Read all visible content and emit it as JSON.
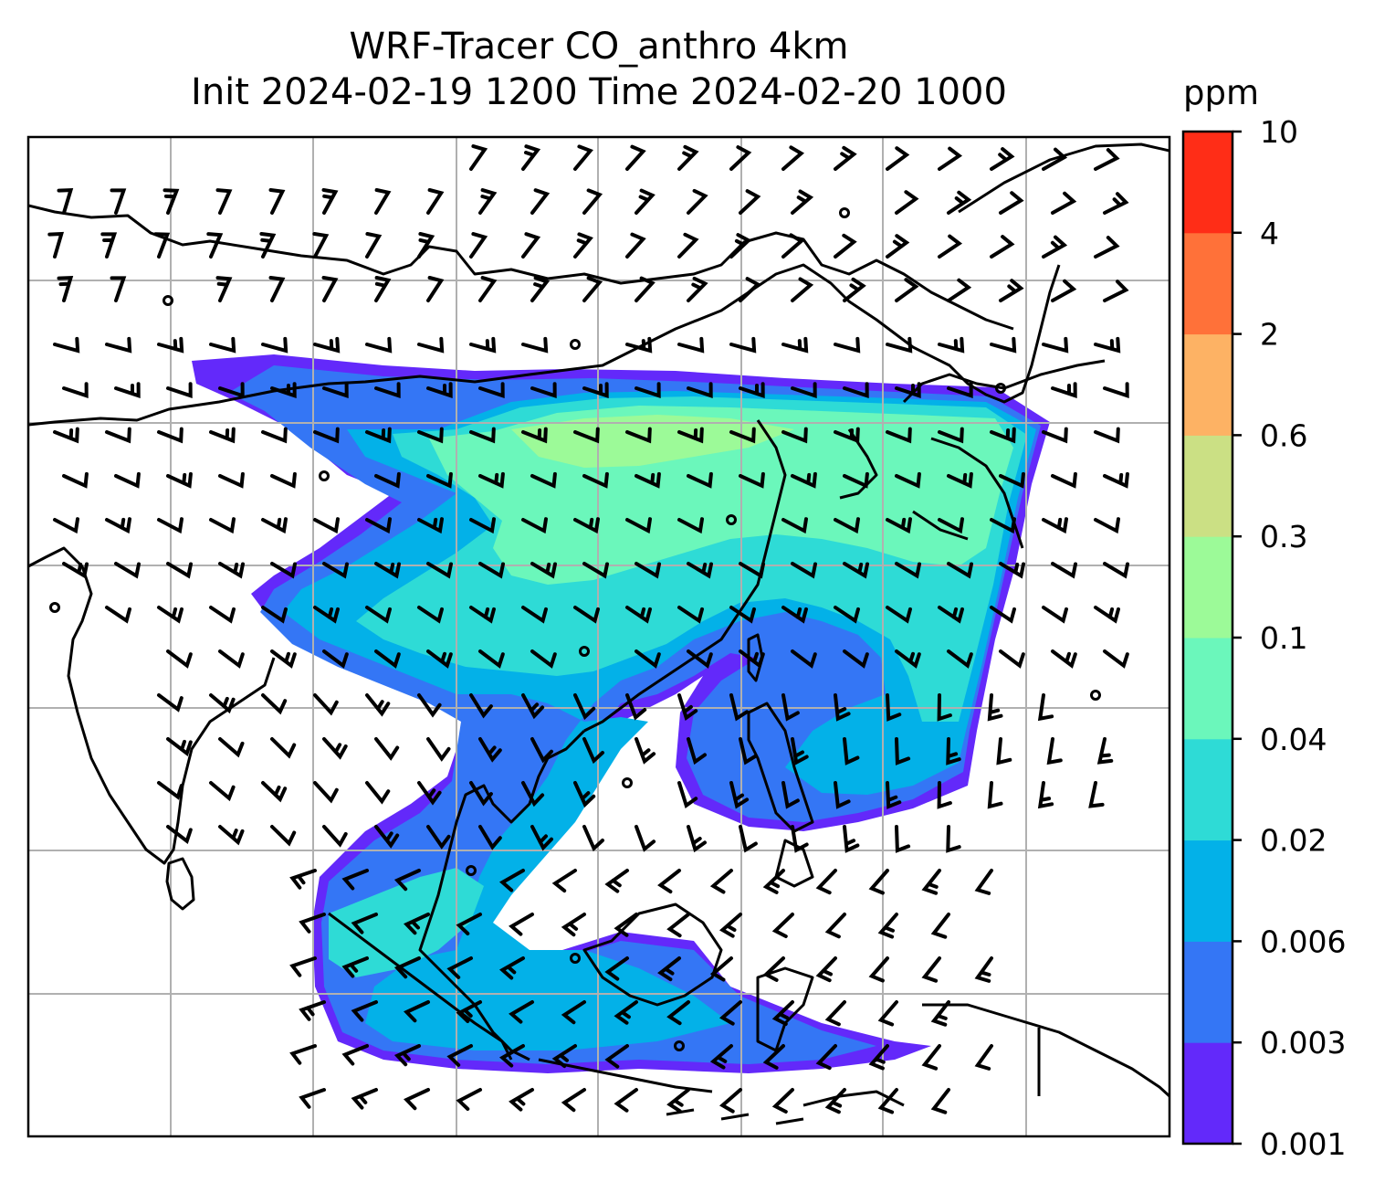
{
  "title": {
    "line1": "WRF-Tracer CO_anthro 4km",
    "line2": "Init 2024-02-19 1200 Time 2024-02-20 1000"
  },
  "colorbar": {
    "unit": "ppm",
    "levels": [
      "0.001",
      "0.003",
      "0.006",
      "0.02",
      "0.04",
      "0.1",
      "0.3",
      "0.6",
      "2",
      "4",
      "10"
    ],
    "colors": [
      "#6329fa",
      "#3476f5",
      "#03b1e8",
      "#2edbd6",
      "#6bf7bb",
      "#9cfa98",
      "#cbe084",
      "#fdb264",
      "#ff7139",
      "#ff2d17"
    ]
  },
  "map": {
    "projection": "regional",
    "gridlines": true,
    "overlay": "wind-barbs",
    "colors": {
      "coastline": "#000000",
      "grid": "#b0b0b0"
    }
  }
}
